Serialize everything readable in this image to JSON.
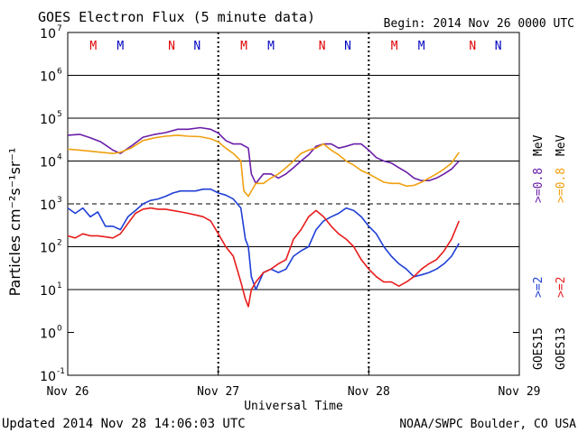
{
  "chart_data": {
    "type": "line",
    "title": "GOES Electron Flux (5 minute data)",
    "begin": "Begin: 2014 Nov 26 0000 UTC",
    "updated": "Updated 2014 Nov 28 14:06:03 UTC",
    "credit": "NOAA/SWPC Boulder, CO USA",
    "xlabel": "Universal Time",
    "ylabel": "Particles cm⁻²s⁻¹sr⁻¹",
    "x_unit": "days since 2014 Nov 26 0000 UTC",
    "x_ticks": [
      {
        "x": 0,
        "label": "Nov 26"
      },
      {
        "x": 1,
        "label": "Nov 27"
      },
      {
        "x": 2,
        "label": "Nov 28"
      },
      {
        "x": 3,
        "label": "Nov 29"
      }
    ],
    "xlim": [
      0,
      3
    ],
    "ylim": [
      0.1,
      10000000.0
    ],
    "yscale": "log",
    "y_ticks": [
      {
        "v": 0.1,
        "base": "10",
        "exp": "-1"
      },
      {
        "v": 1.0,
        "base": "10",
        "exp": "0"
      },
      {
        "v": 10.0,
        "base": "10",
        "exp": "1"
      },
      {
        "v": 100.0,
        "base": "10",
        "exp": "2"
      },
      {
        "v": 1000.0,
        "base": "10",
        "exp": "3"
      },
      {
        "v": 10000.0,
        "base": "10",
        "exp": "4"
      },
      {
        "v": 100000.0,
        "base": "10",
        "exp": "5"
      },
      {
        "v": 1000000.0,
        "base": "10",
        "exp": "6"
      },
      {
        "v": 10000000.0,
        "base": "10",
        "exp": "7"
      }
    ],
    "grid_lines": [
      10.0,
      100.0,
      10000.0,
      100000.0,
      1000000.0
    ],
    "threshold_line": 1000.0,
    "day_markers": [
      {
        "x": 0.17,
        "label": "M",
        "color": "#e00000"
      },
      {
        "x": 0.35,
        "label": "M",
        "color": "#0000c0"
      },
      {
        "x": 0.69,
        "label": "N",
        "color": "#e00000"
      },
      {
        "x": 0.86,
        "label": "N",
        "color": "#0000c0"
      },
      {
        "x": 1.17,
        "label": "M",
        "color": "#e00000"
      },
      {
        "x": 1.35,
        "label": "M",
        "color": "#0000c0"
      },
      {
        "x": 1.69,
        "label": "N",
        "color": "#e00000"
      },
      {
        "x": 1.86,
        "label": "N",
        "color": "#0000c0"
      },
      {
        "x": 2.17,
        "label": "M",
        "color": "#e00000"
      },
      {
        "x": 2.35,
        "label": "M",
        "color": "#0000c0"
      },
      {
        "x": 2.69,
        "label": "N",
        "color": "#e00000"
      },
      {
        "x": 2.86,
        "label": "N",
        "color": "#0000c0"
      }
    ],
    "legend": [
      {
        "sat": "GOES15",
        "label": ">=2",
        "unit": "",
        "color": "#1f3fd6",
        "base_color": "#000000"
      },
      {
        "sat": "GOES13",
        "label": ">=2",
        "unit": "",
        "color": "#e81c1c",
        "base_color": "#000000"
      },
      {
        "sat": "",
        "label": ">=0.8",
        "unit": "MeV",
        "color": "#6a1ea8",
        "base_color": "#000000"
      },
      {
        "sat": "",
        "label": ">=0.8",
        "unit": "MeV",
        "color": "#f0a010",
        "base_color": "#000000"
      }
    ],
    "series": [
      {
        "name": "GOES15 >=0.8 MeV",
        "color": "#6a1ea8",
        "points": [
          [
            0,
            40000
          ],
          [
            0.08,
            42000
          ],
          [
            0.15,
            35000
          ],
          [
            0.22,
            28000
          ],
          [
            0.3,
            18000
          ],
          [
            0.35,
            15000
          ],
          [
            0.42,
            22000
          ],
          [
            0.5,
            36000
          ],
          [
            0.58,
            42000
          ],
          [
            0.65,
            46000
          ],
          [
            0.73,
            55000
          ],
          [
            0.8,
            55000
          ],
          [
            0.88,
            60000
          ],
          [
            0.95,
            55000
          ],
          [
            1.0,
            45000
          ],
          [
            1.05,
            30000
          ],
          [
            1.1,
            25000
          ],
          [
            1.15,
            25000
          ],
          [
            1.2,
            20000
          ],
          [
            1.22,
            5000
          ],
          [
            1.25,
            3000
          ],
          [
            1.3,
            5000
          ],
          [
            1.35,
            5000
          ],
          [
            1.4,
            4000
          ],
          [
            1.45,
            5000
          ],
          [
            1.5,
            7000
          ],
          [
            1.55,
            10000
          ],
          [
            1.6,
            14000
          ],
          [
            1.65,
            22000
          ],
          [
            1.7,
            25000
          ],
          [
            1.75,
            25000
          ],
          [
            1.8,
            20000
          ],
          [
            1.85,
            22000
          ],
          [
            1.9,
            25000
          ],
          [
            1.95,
            25000
          ],
          [
            2.0,
            18000
          ],
          [
            2.05,
            12000
          ],
          [
            2.1,
            10000
          ],
          [
            2.15,
            9000
          ],
          [
            2.2,
            7000
          ],
          [
            2.25,
            5500
          ],
          [
            2.3,
            4000
          ],
          [
            2.35,
            3500
          ],
          [
            2.4,
            3500
          ],
          [
            2.45,
            4000
          ],
          [
            2.5,
            5000
          ],
          [
            2.55,
            6500
          ],
          [
            2.6,
            10000
          ]
        ]
      },
      {
        "name": "GOES13 >=0.8 MeV",
        "color": "#f0a010",
        "points": [
          [
            0,
            19000
          ],
          [
            0.08,
            18000
          ],
          [
            0.15,
            17000
          ],
          [
            0.22,
            16000
          ],
          [
            0.3,
            15000
          ],
          [
            0.35,
            16000
          ],
          [
            0.42,
            20000
          ],
          [
            0.5,
            30000
          ],
          [
            0.58,
            35000
          ],
          [
            0.65,
            38000
          ],
          [
            0.73,
            40000
          ],
          [
            0.8,
            38000
          ],
          [
            0.88,
            37000
          ],
          [
            0.95,
            33000
          ],
          [
            1.0,
            28000
          ],
          [
            1.05,
            20000
          ],
          [
            1.1,
            15000
          ],
          [
            1.15,
            10000
          ],
          [
            1.17,
            2000
          ],
          [
            1.2,
            1500
          ],
          [
            1.25,
            3000
          ],
          [
            1.3,
            3000
          ],
          [
            1.35,
            4000
          ],
          [
            1.4,
            5000
          ],
          [
            1.45,
            7000
          ],
          [
            1.5,
            10000
          ],
          [
            1.55,
            15000
          ],
          [
            1.6,
            18000
          ],
          [
            1.65,
            20000
          ],
          [
            1.7,
            25000
          ],
          [
            1.75,
            18000
          ],
          [
            1.8,
            14000
          ],
          [
            1.85,
            10000
          ],
          [
            1.9,
            8000
          ],
          [
            1.95,
            6000
          ],
          [
            2.0,
            5000
          ],
          [
            2.05,
            4000
          ],
          [
            2.1,
            3200
          ],
          [
            2.15,
            3000
          ],
          [
            2.2,
            3000
          ],
          [
            2.25,
            2600
          ],
          [
            2.3,
            2700
          ],
          [
            2.35,
            3200
          ],
          [
            2.4,
            4000
          ],
          [
            2.45,
            5000
          ],
          [
            2.5,
            6500
          ],
          [
            2.55,
            9000
          ],
          [
            2.6,
            16000
          ]
        ]
      },
      {
        "name": "GOES15 >=2 MeV",
        "color": "#1f3fd6",
        "points": [
          [
            0,
            800
          ],
          [
            0.05,
            600
          ],
          [
            0.1,
            800
          ],
          [
            0.15,
            500
          ],
          [
            0.2,
            650
          ],
          [
            0.25,
            300
          ],
          [
            0.3,
            300
          ],
          [
            0.35,
            250
          ],
          [
            0.4,
            500
          ],
          [
            0.45,
            700
          ],
          [
            0.5,
            1000
          ],
          [
            0.55,
            1200
          ],
          [
            0.6,
            1300
          ],
          [
            0.65,
            1500
          ],
          [
            0.7,
            1800
          ],
          [
            0.75,
            2000
          ],
          [
            0.8,
            2000
          ],
          [
            0.85,
            2000
          ],
          [
            0.9,
            2200
          ],
          [
            0.95,
            2200
          ],
          [
            1.0,
            1800
          ],
          [
            1.05,
            1600
          ],
          [
            1.1,
            1300
          ],
          [
            1.15,
            800
          ],
          [
            1.18,
            150
          ],
          [
            1.2,
            100
          ],
          [
            1.22,
            20
          ],
          [
            1.25,
            10
          ],
          [
            1.3,
            25
          ],
          [
            1.35,
            30
          ],
          [
            1.4,
            25
          ],
          [
            1.45,
            30
          ],
          [
            1.5,
            60
          ],
          [
            1.55,
            80
          ],
          [
            1.6,
            100
          ],
          [
            1.65,
            250
          ],
          [
            1.7,
            400
          ],
          [
            1.75,
            500
          ],
          [
            1.8,
            600
          ],
          [
            1.85,
            800
          ],
          [
            1.9,
            700
          ],
          [
            1.95,
            500
          ],
          [
            2.0,
            300
          ],
          [
            2.05,
            200
          ],
          [
            2.1,
            100
          ],
          [
            2.15,
            60
          ],
          [
            2.2,
            40
          ],
          [
            2.25,
            30
          ],
          [
            2.3,
            20
          ],
          [
            2.35,
            22
          ],
          [
            2.4,
            25
          ],
          [
            2.45,
            30
          ],
          [
            2.5,
            40
          ],
          [
            2.55,
            60
          ],
          [
            2.6,
            120
          ]
        ]
      },
      {
        "name": "GOES13 >=2 MeV",
        "color": "#e81c1c",
        "points": [
          [
            0,
            180
          ],
          [
            0.05,
            160
          ],
          [
            0.1,
            200
          ],
          [
            0.15,
            180
          ],
          [
            0.2,
            180
          ],
          [
            0.25,
            170
          ],
          [
            0.3,
            160
          ],
          [
            0.35,
            200
          ],
          [
            0.4,
            350
          ],
          [
            0.45,
            600
          ],
          [
            0.5,
            750
          ],
          [
            0.55,
            800
          ],
          [
            0.6,
            750
          ],
          [
            0.65,
            750
          ],
          [
            0.7,
            700
          ],
          [
            0.75,
            650
          ],
          [
            0.8,
            600
          ],
          [
            0.85,
            550
          ],
          [
            0.9,
            500
          ],
          [
            0.95,
            400
          ],
          [
            1.0,
            200
          ],
          [
            1.05,
            100
          ],
          [
            1.1,
            60
          ],
          [
            1.15,
            15
          ],
          [
            1.18,
            6
          ],
          [
            1.2,
            4
          ],
          [
            1.22,
            10
          ],
          [
            1.25,
            15
          ],
          [
            1.3,
            25
          ],
          [
            1.35,
            30
          ],
          [
            1.4,
            40
          ],
          [
            1.45,
            50
          ],
          [
            1.5,
            150
          ],
          [
            1.55,
            250
          ],
          [
            1.6,
            500
          ],
          [
            1.65,
            700
          ],
          [
            1.7,
            500
          ],
          [
            1.75,
            300
          ],
          [
            1.8,
            200
          ],
          [
            1.85,
            150
          ],
          [
            1.9,
            100
          ],
          [
            1.95,
            50
          ],
          [
            2.0,
            30
          ],
          [
            2.05,
            20
          ],
          [
            2.1,
            15
          ],
          [
            2.15,
            15
          ],
          [
            2.2,
            12
          ],
          [
            2.25,
            15
          ],
          [
            2.3,
            20
          ],
          [
            2.35,
            30
          ],
          [
            2.4,
            40
          ],
          [
            2.45,
            50
          ],
          [
            2.5,
            80
          ],
          [
            2.55,
            150
          ],
          [
            2.6,
            400
          ]
        ]
      }
    ]
  }
}
